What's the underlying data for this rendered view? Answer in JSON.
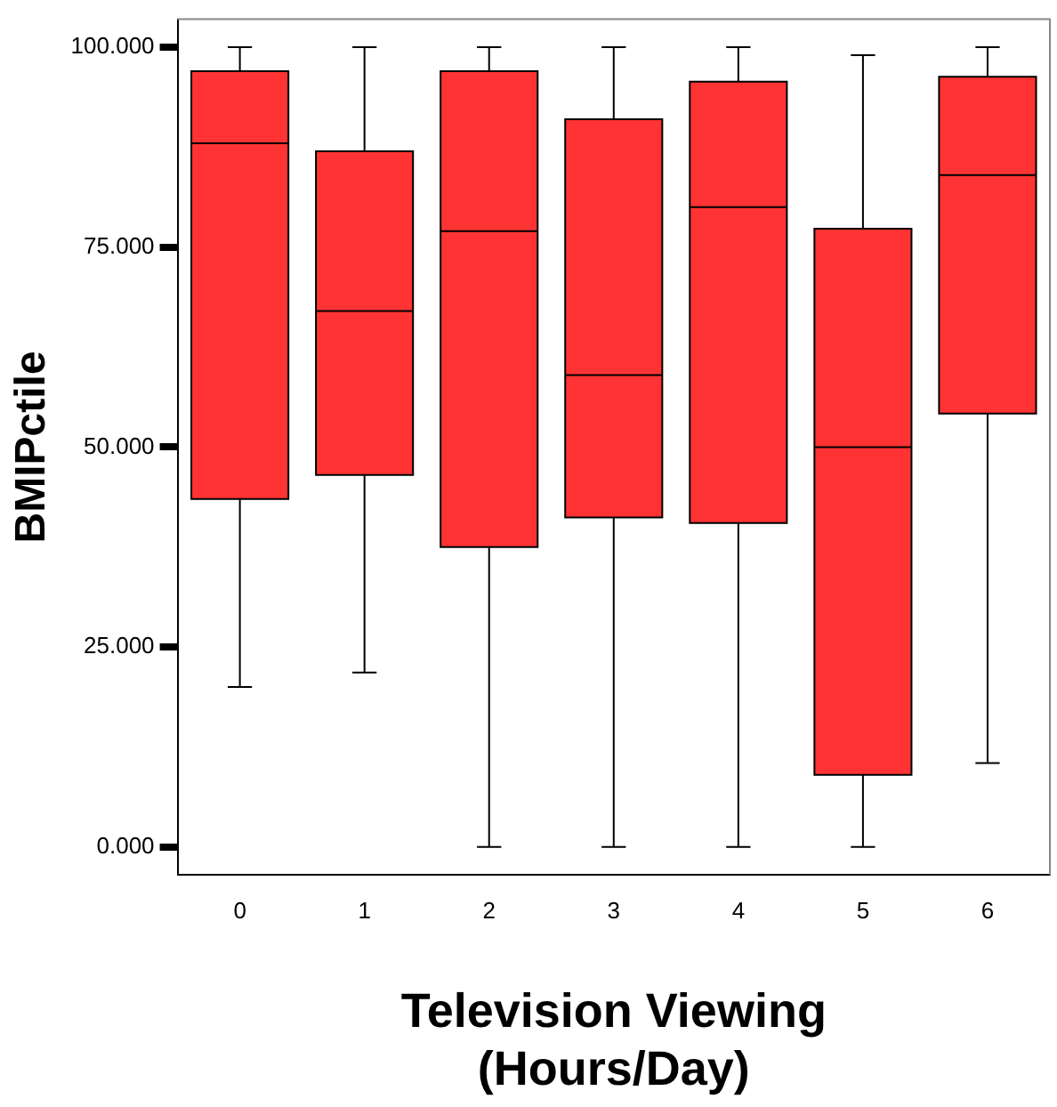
{
  "chart_data": {
    "type": "box",
    "xlabel": "Television Viewing\n(Hours/Day)",
    "ylabel": "BMIPctile",
    "categories": [
      "0",
      "1",
      "2",
      "3",
      "4",
      "5",
      "6"
    ],
    "color": "#ff3333",
    "ylim": [
      -3.5,
      103.5
    ],
    "yticks": [
      {
        "value": 0,
        "label": "0.000"
      },
      {
        "value": 25,
        "label": "25.000"
      },
      {
        "value": 50,
        "label": "50.000"
      },
      {
        "value": 75,
        "label": "75.000"
      },
      {
        "value": 100,
        "label": "100.000"
      }
    ],
    "grid": false,
    "boxes": [
      {
        "low": 20,
        "q1": 43.5,
        "median": 88,
        "q3": 97,
        "high": 100
      },
      {
        "low": 21.8,
        "q1": 46.5,
        "median": 67,
        "q3": 87,
        "high": 100
      },
      {
        "low": 0,
        "q1": 37.5,
        "median": 77,
        "q3": 97,
        "high": 100
      },
      {
        "low": 0,
        "q1": 41.2,
        "median": 59,
        "q3": 91,
        "high": 100
      },
      {
        "low": 0,
        "q1": 40.5,
        "median": 80,
        "q3": 95.7,
        "high": 100
      },
      {
        "low": 0,
        "q1": 9,
        "median": 50,
        "q3": 77.3,
        "high": 99
      },
      {
        "low": 10.5,
        "q1": 54.2,
        "median": 84,
        "q3": 96.3,
        "high": 100
      }
    ]
  }
}
